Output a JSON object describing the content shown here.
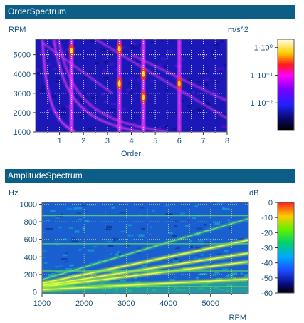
{
  "panels": {
    "order": {
      "header": "OrderSpectrum"
    },
    "amplitude": {
      "header": "AmplitudeSpectrum"
    }
  },
  "colors": {
    "header_bg": "#0d5e87",
    "axis_text": "#1b4f7a",
    "grid_order": "#ffffff",
    "grid_amp": "#ffff66"
  },
  "chart_data": [
    {
      "type": "heatmap",
      "title": "OrderSpectrum",
      "xlabel": "Order",
      "ylabel": "RPM",
      "colorbar_label": "m/s^2",
      "xlim": [
        0,
        8
      ],
      "ylim": [
        1000,
        5800
      ],
      "x_ticks": [
        1,
        2,
        3,
        4,
        5,
        6,
        7,
        8
      ],
      "x_tick_labels": [
        "1",
        "2",
        "3",
        "4",
        "5",
        "6",
        "7",
        "8"
      ],
      "y_ticks": [
        1000,
        2000,
        3000,
        4000,
        5000
      ],
      "y_tick_labels": [
        "1000",
        "2000",
        "3000",
        "4000",
        "5000"
      ],
      "colorbar_scale": "log",
      "colorbar_range": [
        0.001,
        2
      ],
      "colorbar_ticks": [
        1,
        0.1,
        0.01
      ],
      "colorbar_tick_labels": [
        "1·10⁰",
        "1·10⁻¹",
        "1·10⁻²"
      ],
      "order_lines": [
        1.5,
        3.5,
        4.5,
        6.0
      ],
      "frequency_traces": [
        0.3,
        0.8,
        1.0
      ],
      "grid": true
    },
    {
      "type": "heatmap",
      "title": "AmplitudeSpectrum",
      "xlabel": "RPM",
      "ylabel": "Hz",
      "colorbar_label": "dB",
      "xlim": [
        1000,
        5900
      ],
      "ylim": [
        -20,
        1020
      ],
      "x_ticks": [
        1000,
        2000,
        3000,
        4000,
        5000
      ],
      "x_tick_labels": [
        "1000",
        "2000",
        "3000",
        "4000",
        "5000"
      ],
      "y_ticks": [
        0,
        200,
        400,
        600,
        800,
        1000
      ],
      "y_tick_labels": [
        "0",
        "200",
        "400",
        "600",
        "800",
        "1000"
      ],
      "colorbar_range": [
        -60,
        0
      ],
      "colorbar_ticks": [
        0,
        -10,
        -20,
        -30,
        -40,
        -50,
        -60
      ],
      "colorbar_tick_labels": [
        "0",
        "-10",
        "-20",
        "-30",
        "-40",
        "-50",
        "-60"
      ],
      "order_traces": [
        1.5,
        3.5,
        4.5,
        6.0,
        8.5
      ],
      "constant_frequencies_hz": [
        60,
        240,
        550,
        870
      ],
      "grid": true
    }
  ]
}
